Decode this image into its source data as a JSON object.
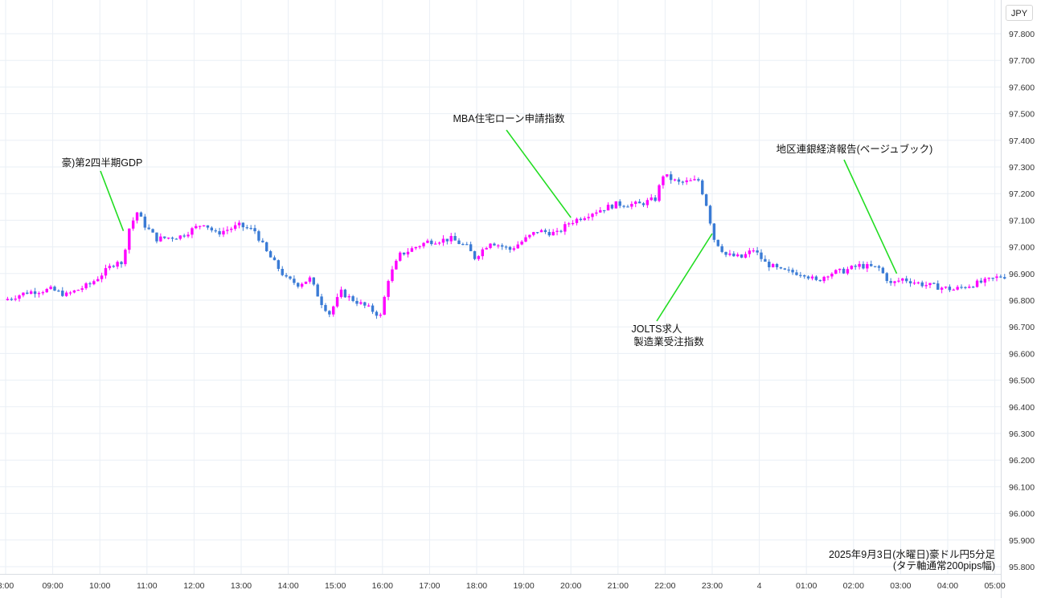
{
  "unit_button": "JPY",
  "caption": {
    "line1": "2025年9月3日(水曜日)豪ドル円5分足",
    "line2": "(タテ軸通常200pips幅)"
  },
  "colors": {
    "up": "#ff00ff",
    "down": "#3a7bd5",
    "annotation_line": "#22dd22",
    "grid": "#eaeff5",
    "axis_text": "#333333"
  },
  "chart_data": {
    "type": "candlestick",
    "title": "2025年9月3日(水曜日)豪ドル円5分足",
    "xlabel": "",
    "ylabel": "",
    "ylim": [
      95.8,
      97.9
    ],
    "xlim": [
      "08:00",
      "05:10"
    ],
    "grid": true,
    "yticks": [
      "97.800",
      "97.700",
      "97.600",
      "97.500",
      "97.400",
      "97.300",
      "97.200",
      "97.100",
      "97.000",
      "96.900",
      "96.800",
      "96.700",
      "96.600",
      "96.500",
      "96.400",
      "96.300",
      "96.200",
      "96.100",
      "96.000",
      "95.900",
      "95.800"
    ],
    "xticks": [
      "8:00",
      "09:00",
      "10:00",
      "11:00",
      "12:00",
      "13:00",
      "14:00",
      "15:00",
      "16:00",
      "17:00",
      "18:00",
      "19:00",
      "20:00",
      "21:00",
      "22:00",
      "23:00",
      "4",
      "01:00",
      "02:00",
      "03:00",
      "04:00",
      "05:00"
    ],
    "anchors": [
      {
        "time": "08:00",
        "price": 96.8
      },
      {
        "time": "08:30",
        "price": 96.83
      },
      {
        "time": "09:00",
        "price": 96.84
      },
      {
        "time": "09:20",
        "price": 96.82
      },
      {
        "time": "09:50",
        "price": 96.86
      },
      {
        "time": "10:10",
        "price": 96.91
      },
      {
        "time": "10:25",
        "price": 96.95
      },
      {
        "time": "10:30",
        "price": 96.93
      },
      {
        "time": "10:40",
        "price": 97.07
      },
      {
        "time": "10:50",
        "price": 97.13
      },
      {
        "time": "11:00",
        "price": 97.08
      },
      {
        "time": "11:15",
        "price": 97.03
      },
      {
        "time": "11:45",
        "price": 97.04
      },
      {
        "time": "12:15",
        "price": 97.09
      },
      {
        "time": "12:30",
        "price": 97.05
      },
      {
        "time": "13:00",
        "price": 97.08
      },
      {
        "time": "13:20",
        "price": 97.06
      },
      {
        "time": "13:35",
        "price": 96.98
      },
      {
        "time": "14:00",
        "price": 96.88
      },
      {
        "time": "14:15",
        "price": 96.86
      },
      {
        "time": "14:30",
        "price": 96.88
      },
      {
        "time": "14:45",
        "price": 96.79
      },
      {
        "time": "14:55",
        "price": 96.75
      },
      {
        "time": "15:10",
        "price": 96.83
      },
      {
        "time": "15:20",
        "price": 96.81
      },
      {
        "time": "15:45",
        "price": 96.77
      },
      {
        "time": "16:00",
        "price": 96.74
      },
      {
        "time": "16:10",
        "price": 96.88
      },
      {
        "time": "16:25",
        "price": 96.97
      },
      {
        "time": "16:45",
        "price": 97.0
      },
      {
        "time": "17:00",
        "price": 97.02
      },
      {
        "time": "17:30",
        "price": 97.03
      },
      {
        "time": "17:50",
        "price": 97.0
      },
      {
        "time": "18:00",
        "price": 96.96
      },
      {
        "time": "18:20",
        "price": 97.02
      },
      {
        "time": "18:45",
        "price": 96.99
      },
      {
        "time": "19:00",
        "price": 97.02
      },
      {
        "time": "19:20",
        "price": 97.06
      },
      {
        "time": "19:45",
        "price": 97.05
      },
      {
        "time": "20:00",
        "price": 97.09
      },
      {
        "time": "20:30",
        "price": 97.13
      },
      {
        "time": "21:00",
        "price": 97.16
      },
      {
        "time": "21:30",
        "price": 97.16
      },
      {
        "time": "21:50",
        "price": 97.18
      },
      {
        "time": "22:00",
        "price": 97.27
      },
      {
        "time": "22:20",
        "price": 97.24
      },
      {
        "time": "22:45",
        "price": 97.25
      },
      {
        "time": "22:55",
        "price": 97.16
      },
      {
        "time": "23:05",
        "price": 97.03
      },
      {
        "time": "23:20",
        "price": 96.97
      },
      {
        "time": "23:40",
        "price": 96.96
      },
      {
        "time": "23:55",
        "price": 96.99
      },
      {
        "time": "00:10",
        "price": 96.94
      },
      {
        "time": "00:30",
        "price": 96.91
      },
      {
        "time": "01:00",
        "price": 96.9
      },
      {
        "time": "01:15",
        "price": 96.87
      },
      {
        "time": "01:30",
        "price": 96.9
      },
      {
        "time": "01:50",
        "price": 96.91
      },
      {
        "time": "02:10",
        "price": 96.93
      },
      {
        "time": "02:35",
        "price": 96.92
      },
      {
        "time": "02:50",
        "price": 96.86
      },
      {
        "time": "03:05",
        "price": 96.88
      },
      {
        "time": "03:30",
        "price": 96.86
      },
      {
        "time": "03:50",
        "price": 96.85
      },
      {
        "time": "04:10",
        "price": 96.84
      },
      {
        "time": "04:35",
        "price": 96.86
      },
      {
        "time": "04:50",
        "price": 96.87
      },
      {
        "time": "05:10",
        "price": 96.89
      }
    ],
    "annotations": [
      {
        "label": "豪)第2四半期GDP",
        "time": "10:30",
        "price": 97.06
      },
      {
        "label": "MBA住宅ローン申請指数",
        "time": "20:00",
        "price": 97.11
      },
      {
        "label": "JOLTS求人",
        "label2": "製造業受注指数",
        "time": "23:00",
        "price": 97.05
      },
      {
        "label": "地区連銀経済報告(ベージュブック)",
        "time": "02:55",
        "price": 96.9
      }
    ]
  }
}
